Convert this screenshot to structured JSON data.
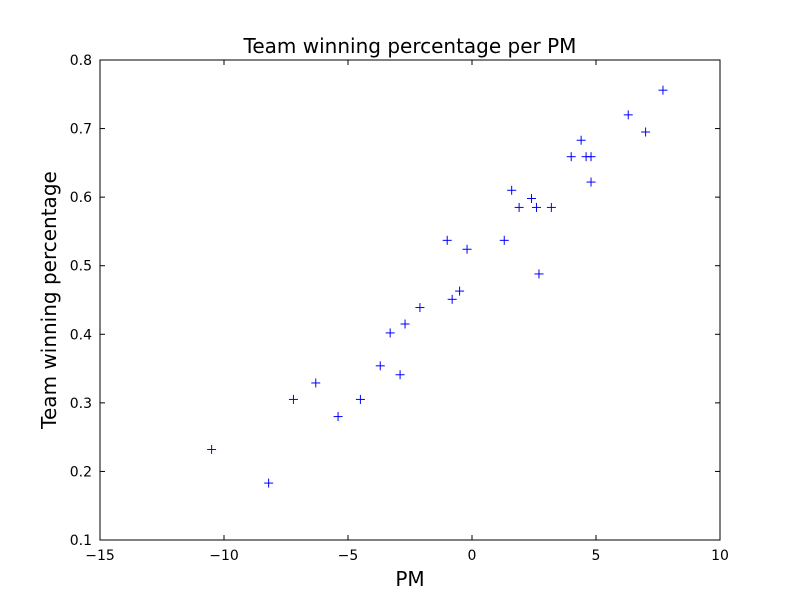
{
  "chart_data": {
    "type": "scatter",
    "title": "Team winning percentage per PM",
    "xlabel": "PM",
    "ylabel": "Team winning percentage",
    "xlim": [
      -15,
      10
    ],
    "ylim": [
      0.1,
      0.8
    ],
    "xticks": [
      -15,
      -10,
      -5,
      0,
      5,
      10
    ],
    "xtick_labels": [
      "−15",
      "−10",
      "−5",
      "0",
      "5",
      "10"
    ],
    "yticks": [
      0.1,
      0.2,
      0.3,
      0.4,
      0.5,
      0.6,
      0.7,
      0.8
    ],
    "ytick_labels": [
      "0.1",
      "0.2",
      "0.3",
      "0.4",
      "0.5",
      "0.6",
      "0.7",
      "0.8"
    ],
    "marker": "+",
    "color": "#0000ff",
    "grid": false,
    "points": [
      {
        "x": -10.5,
        "y": 0.232
      },
      {
        "x": -8.2,
        "y": 0.183
      },
      {
        "x": -7.2,
        "y": 0.305
      },
      {
        "x": -6.3,
        "y": 0.329
      },
      {
        "x": -5.4,
        "y": 0.28
      },
      {
        "x": -4.5,
        "y": 0.305
      },
      {
        "x": -3.7,
        "y": 0.354
      },
      {
        "x": -3.3,
        "y": 0.402
      },
      {
        "x": -2.9,
        "y": 0.341
      },
      {
        "x": -2.7,
        "y": 0.415
      },
      {
        "x": -2.1,
        "y": 0.439
      },
      {
        "x": -1.0,
        "y": 0.537
      },
      {
        "x": -0.8,
        "y": 0.451
      },
      {
        "x": -0.5,
        "y": 0.463
      },
      {
        "x": -0.2,
        "y": 0.524
      },
      {
        "x": 1.3,
        "y": 0.537
      },
      {
        "x": 1.6,
        "y": 0.61
      },
      {
        "x": 1.9,
        "y": 0.585
      },
      {
        "x": 2.4,
        "y": 0.598
      },
      {
        "x": 2.6,
        "y": 0.585
      },
      {
        "x": 2.7,
        "y": 0.488
      },
      {
        "x": 3.2,
        "y": 0.585
      },
      {
        "x": 4.0,
        "y": 0.659
      },
      {
        "x": 4.4,
        "y": 0.683
      },
      {
        "x": 4.6,
        "y": 0.659
      },
      {
        "x": 4.8,
        "y": 0.659
      },
      {
        "x": 4.8,
        "y": 0.622
      },
      {
        "x": 6.3,
        "y": 0.72
      },
      {
        "x": 7.0,
        "y": 0.695
      },
      {
        "x": 7.7,
        "y": 0.756
      }
    ]
  }
}
